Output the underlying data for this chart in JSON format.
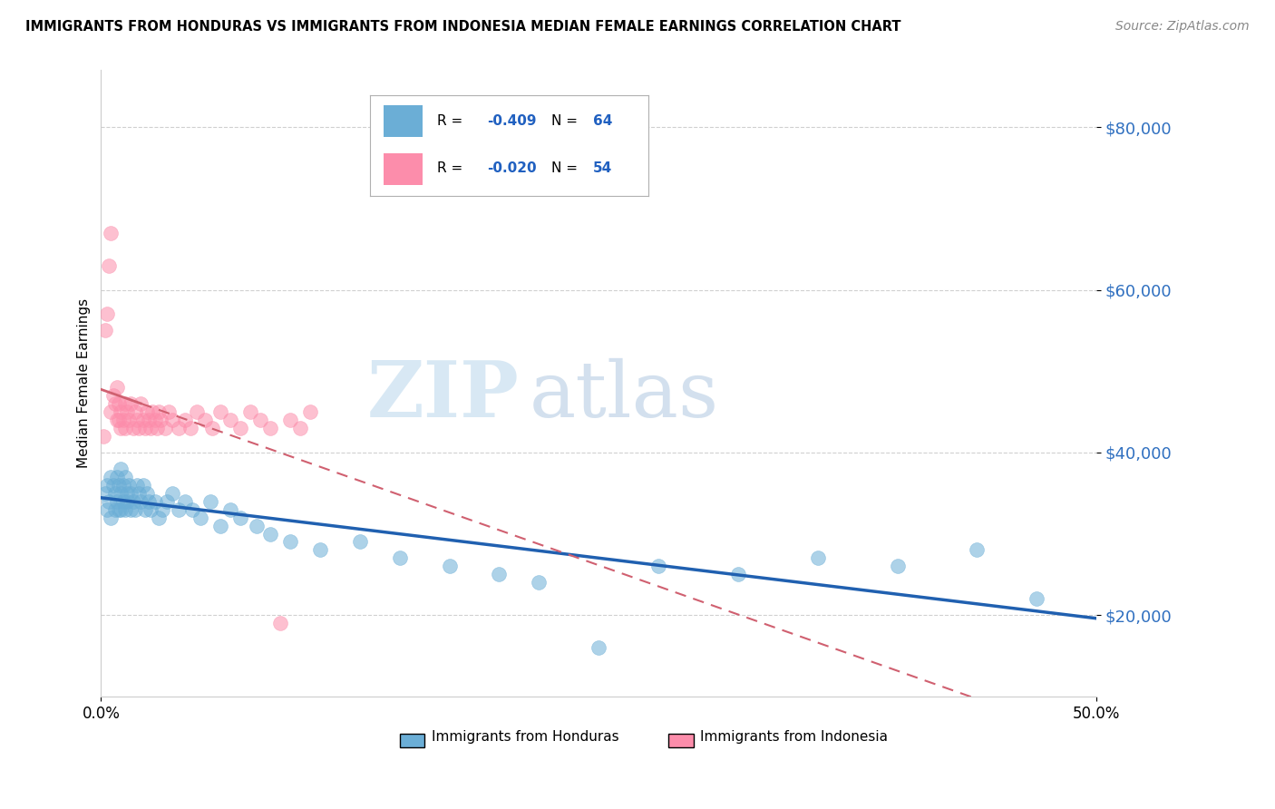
{
  "title": "IMMIGRANTS FROM HONDURAS VS IMMIGRANTS FROM INDONESIA MEDIAN FEMALE EARNINGS CORRELATION CHART",
  "source": "Source: ZipAtlas.com",
  "ylabel": "Median Female Earnings",
  "yticks": [
    20000,
    40000,
    60000,
    80000
  ],
  "ytick_labels": [
    "$20,000",
    "$40,000",
    "$60,000",
    "$80,000"
  ],
  "xlim": [
    0.0,
    50.0
  ],
  "ylim": [
    10000,
    87000
  ],
  "honduras_color": "#6baed6",
  "indonesia_color": "#fc8dab",
  "honduras_line_color": "#2060b0",
  "indonesia_line_color": "#d06070",
  "honduras_R": -0.409,
  "honduras_N": 64,
  "indonesia_R": -0.02,
  "indonesia_N": 54,
  "legend_label_1": "Immigrants from Honduras",
  "legend_label_2": "Immigrants from Indonesia",
  "watermark_zip": "ZIP",
  "watermark_atlas": "atlas",
  "honduras_scatter_x": [
    0.2,
    0.3,
    0.3,
    0.4,
    0.5,
    0.5,
    0.6,
    0.7,
    0.7,
    0.8,
    0.8,
    0.9,
    0.9,
    1.0,
    1.0,
    1.0,
    1.1,
    1.1,
    1.2,
    1.2,
    1.3,
    1.3,
    1.4,
    1.5,
    1.5,
    1.6,
    1.7,
    1.8,
    1.9,
    2.0,
    2.1,
    2.2,
    2.3,
    2.4,
    2.5,
    2.7,
    2.9,
    3.1,
    3.3,
    3.6,
    3.9,
    4.2,
    4.6,
    5.0,
    5.5,
    6.0,
    6.5,
    7.0,
    7.8,
    8.5,
    9.5,
    11.0,
    13.0,
    15.0,
    17.5,
    20.0,
    22.0,
    25.0,
    28.0,
    32.0,
    36.0,
    40.0,
    44.0,
    47.0
  ],
  "honduras_scatter_y": [
    35000,
    36000,
    33000,
    34000,
    37000,
    32000,
    36000,
    35000,
    33000,
    37000,
    34000,
    36000,
    33000,
    38000,
    35000,
    33000,
    36000,
    34000,
    37000,
    33000,
    35000,
    34000,
    36000,
    33000,
    35000,
    34000,
    33000,
    36000,
    35000,
    34000,
    36000,
    33000,
    35000,
    34000,
    33000,
    34000,
    32000,
    33000,
    34000,
    35000,
    33000,
    34000,
    33000,
    32000,
    34000,
    31000,
    33000,
    32000,
    31000,
    30000,
    29000,
    28000,
    29000,
    27000,
    26000,
    25000,
    24000,
    16000,
    26000,
    25000,
    27000,
    26000,
    28000,
    22000
  ],
  "indonesia_scatter_x": [
    0.1,
    0.2,
    0.3,
    0.4,
    0.5,
    0.5,
    0.6,
    0.7,
    0.8,
    0.8,
    0.9,
    0.9,
    1.0,
    1.0,
    1.1,
    1.2,
    1.2,
    1.3,
    1.4,
    1.5,
    1.6,
    1.7,
    1.8,
    1.9,
    2.0,
    2.1,
    2.2,
    2.3,
    2.4,
    2.5,
    2.6,
    2.7,
    2.8,
    2.9,
    3.0,
    3.2,
    3.4,
    3.6,
    3.9,
    4.2,
    4.5,
    4.8,
    5.2,
    5.6,
    6.0,
    6.5,
    7.0,
    7.5,
    8.0,
    8.5,
    9.0,
    9.5,
    10.0,
    10.5
  ],
  "indonesia_scatter_y": [
    42000,
    55000,
    57000,
    63000,
    67000,
    45000,
    47000,
    46000,
    44000,
    48000,
    46000,
    44000,
    43000,
    45000,
    44000,
    46000,
    43000,
    45000,
    44000,
    46000,
    43000,
    45000,
    44000,
    43000,
    46000,
    44000,
    43000,
    45000,
    44000,
    43000,
    45000,
    44000,
    43000,
    45000,
    44000,
    43000,
    45000,
    44000,
    43000,
    44000,
    43000,
    45000,
    44000,
    43000,
    45000,
    44000,
    43000,
    45000,
    44000,
    43000,
    19000,
    44000,
    43000,
    45000
  ]
}
